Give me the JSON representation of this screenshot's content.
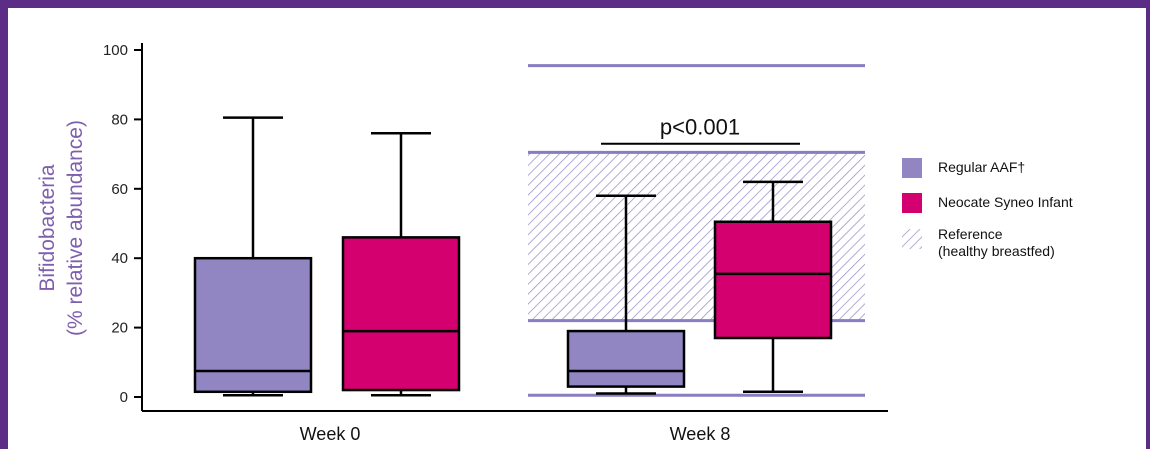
{
  "chart_data": {
    "type": "box",
    "ylabel_line1": "Bifidobacteria",
    "ylabel_line2": "(% relative abundance)",
    "ylim": [
      0,
      100
    ],
    "yticks": [
      0,
      20,
      40,
      60,
      80,
      100
    ],
    "categories": [
      "Week 0",
      "Week 8"
    ],
    "series": [
      {
        "name": "Regular AAF†",
        "color": "#9186c2",
        "boxes": [
          {
            "min": 0.5,
            "q1": 1.5,
            "median": 7.5,
            "q3": 40,
            "max": 80.5
          },
          {
            "min": 1,
            "q1": 3,
            "median": 7.5,
            "q3": 19,
            "max": 58
          }
        ]
      },
      {
        "name": "Neocate Syneo Infant",
        "color": "#d4006f",
        "boxes": [
          {
            "min": 0.5,
            "q1": 2,
            "median": 19,
            "q3": 46,
            "max": 76
          },
          {
            "min": 1.5,
            "q1": 17,
            "median": 35.5,
            "q3": 50.5,
            "max": 62
          }
        ]
      }
    ],
    "reference": {
      "label_line1": "Reference",
      "label_line2": "(healthy breastfed)",
      "color": "#8a7cc0",
      "category": "Week 8",
      "band_low": 22,
      "band_high": 70.5,
      "whisker_low": 0.5,
      "whisker_high": 95.5
    },
    "annotation": {
      "text": "p<0.001",
      "category": "Week 8",
      "value": 73
    }
  }
}
